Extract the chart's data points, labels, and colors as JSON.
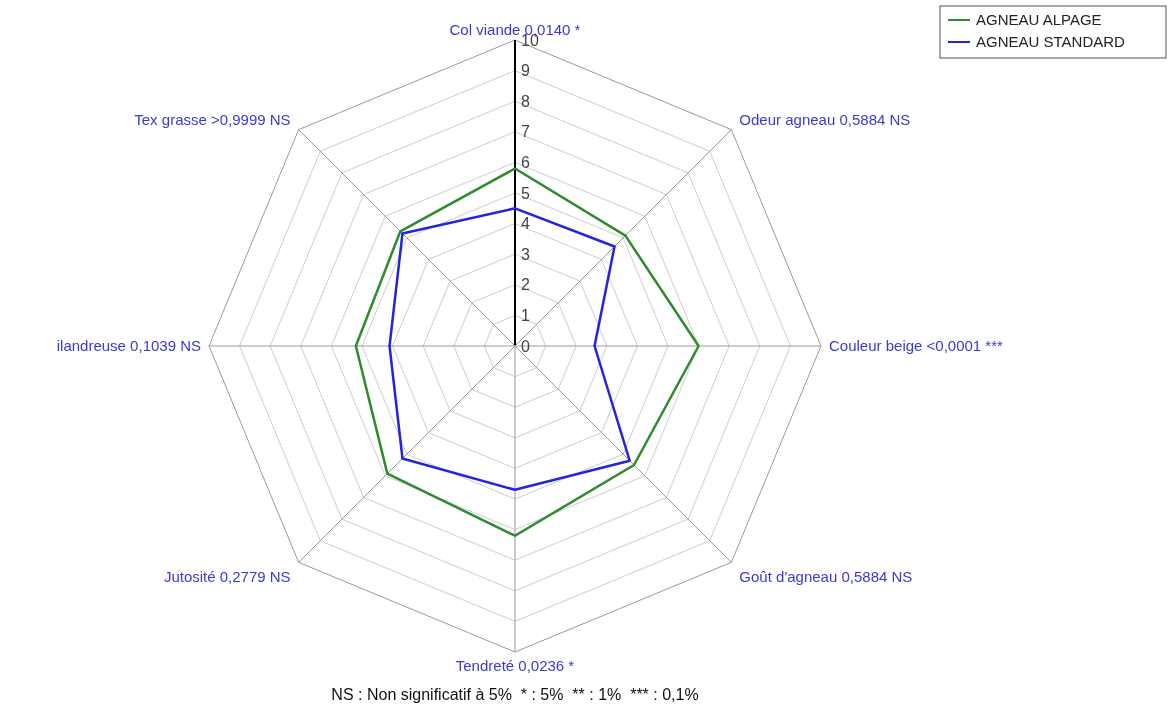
{
  "chart_data": {
    "type": "radar",
    "categories": [
      "Col viande 0,0140 *",
      "Odeur agneau 0,5884 NS",
      "Couleur beige <0,0001 ***",
      "Goût d'agneau 0,5884 NS",
      "Tendreté 0,0236 *",
      "Jutosité 0,2779 NS",
      "ilandreuse 0,1039 NS",
      "Tex grasse >0,9999 NS"
    ],
    "series": [
      {
        "name": "AGNEAU ALPAGE",
        "color": "#2e8b2e",
        "values": [
          5.8,
          5.1,
          6.0,
          5.5,
          6.2,
          5.9,
          5.2,
          5.3
        ]
      },
      {
        "name": "AGNEAU STANDARD",
        "color": "#2323e0",
        "values": [
          4.5,
          4.6,
          2.6,
          5.3,
          4.7,
          5.2,
          4.1,
          5.2
        ]
      }
    ],
    "ylim": [
      0,
      10
    ],
    "yticks": [
      0,
      1,
      2,
      3,
      4,
      5,
      6,
      7,
      8,
      9,
      10
    ],
    "grid": true,
    "legend": "top right",
    "marker": "none",
    "line_style": "solid",
    "annotations": [
      "NS : Non significatif à 5%  * : 5%  ** : 1%  *** : 0,1%"
    ]
  }
}
